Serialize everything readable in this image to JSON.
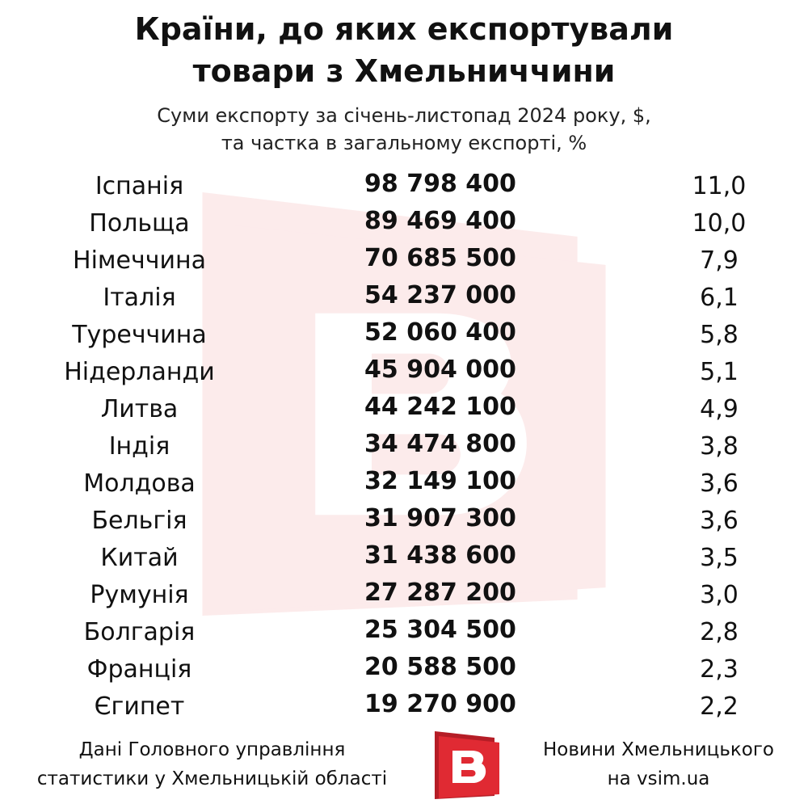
{
  "title": {
    "line1": "Країни, до яких експортували",
    "line2": "товари з Хмельниччини"
  },
  "subtitle": {
    "line1": "Суми експорту за січень-листопад 2024 року, $,",
    "line2": "та частка в загальному експорті, %"
  },
  "chart_data": {
    "type": "table",
    "title": "Країни, до яких експортували товари з Хмельниччини",
    "subtitle": "Суми експорту за січень-листопад 2024 року, $, та частка в загальному експорті, %",
    "rows": [
      {
        "country": "Іспанія",
        "amount": "98 798 400",
        "share": "11,0"
      },
      {
        "country": "Польща",
        "amount": "89 469 400",
        "share": "10,0"
      },
      {
        "country": "Німеччина",
        "amount": "70 685 500",
        "share": "7,9"
      },
      {
        "country": "Італія",
        "amount": "54 237 000",
        "share": "6,1"
      },
      {
        "country": "Туреччина",
        "amount": "52 060 400",
        "share": "5,8"
      },
      {
        "country": "Нідерланди",
        "amount": "45 904 000",
        "share": "5,1"
      },
      {
        "country": "Литва",
        "amount": "44 242 100",
        "share": "4,9"
      },
      {
        "country": "Індія",
        "amount": "34 474 800",
        "share": "3,8"
      },
      {
        "country": "Молдова",
        "amount": "32 149 100",
        "share": "3,6"
      },
      {
        "country": "Бельгія",
        "amount": "31 907 300",
        "share": "3,6"
      },
      {
        "country": "Китай",
        "amount": "31 438 600",
        "share": "3,5"
      },
      {
        "country": "Румунія",
        "amount": "27 287 200",
        "share": "3,0"
      },
      {
        "country": "Болгарія",
        "amount": "25 304 500",
        "share": "2,8"
      },
      {
        "country": "Франція",
        "amount": "20 588 500",
        "share": "2,3"
      },
      {
        "country": "Єгипет",
        "amount": "19 270 900",
        "share": "2,2"
      }
    ]
  },
  "footer": {
    "source_line1": "Дані Головного управління",
    "source_line2": "статистики у Хмельницькій області",
    "brand_line1": "Новини Хмельницького",
    "brand_line2": "на vsim.ua"
  },
  "logo": {
    "icon": "vsim-logo-icon",
    "letter": "B",
    "color": "#e02a33",
    "dark_color": "#b51d26"
  },
  "watermark": {
    "icon": "vsim-watermark-icon",
    "color": "#e02a33"
  }
}
